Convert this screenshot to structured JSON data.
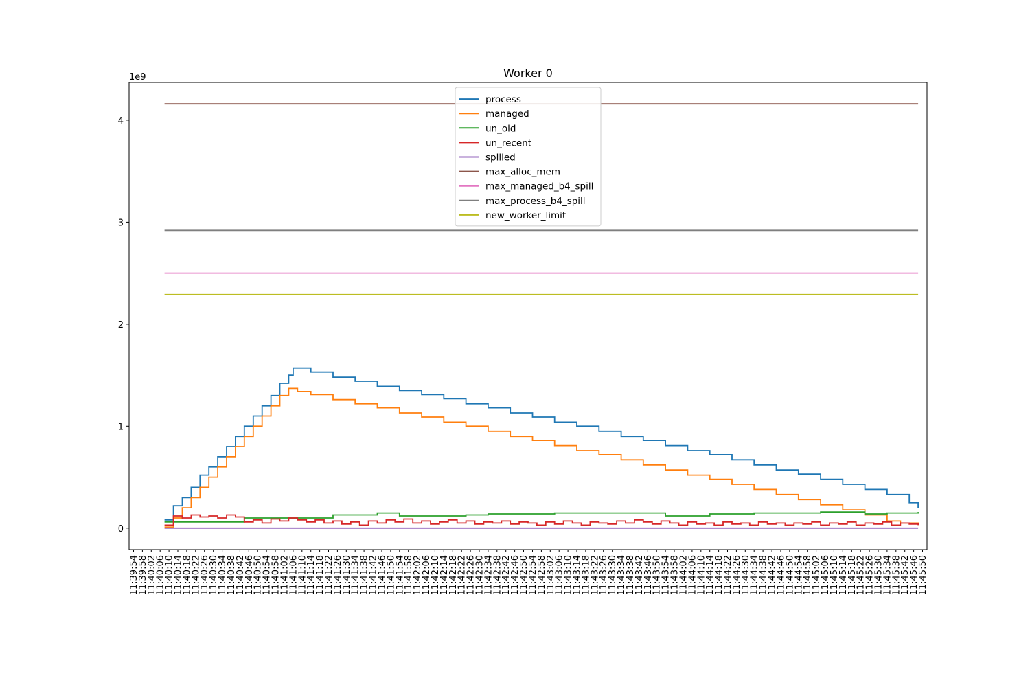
{
  "chart_data": {
    "type": "line",
    "title": "Worker 0",
    "xlabel": "",
    "ylabel": "",
    "y_multiplier_label": "1e9",
    "y_scale": 1000000000,
    "ylim": [
      -0.21,
      4.37
    ],
    "y_ticks": [
      0,
      1,
      2,
      3,
      4
    ],
    "y_tick_labels": [
      "0",
      "1",
      "2",
      "3",
      "4"
    ],
    "x_unit": "seconds since 11:39:54",
    "xlim": [
      -2,
      358
    ],
    "x_ticks_start": 0,
    "x_ticks_step": 4,
    "x_tick_labels": [
      "11:39:54",
      "11:39:58",
      "11:40:02",
      "11:40:06",
      "11:40:10",
      "11:40:14",
      "11:40:18",
      "11:40:22",
      "11:40:26",
      "11:40:30",
      "11:40:34",
      "11:40:38",
      "11:40:42",
      "11:40:46",
      "11:40:50",
      "11:40:54",
      "11:40:58",
      "11:41:02",
      "11:41:06",
      "11:41:10",
      "11:41:14",
      "11:41:18",
      "11:41:22",
      "11:41:26",
      "11:41:30",
      "11:41:34",
      "11:41:38",
      "11:41:42",
      "11:41:46",
      "11:41:50",
      "11:41:54",
      "11:41:58",
      "11:42:02",
      "11:42:06",
      "11:42:10",
      "11:42:14",
      "11:42:18",
      "11:42:22",
      "11:42:26",
      "11:42:30",
      "11:42:34",
      "11:42:38",
      "11:42:42",
      "11:42:46",
      "11:42:50",
      "11:42:54",
      "11:42:58",
      "11:43:02",
      "11:43:06",
      "11:43:10",
      "11:43:14",
      "11:43:18",
      "11:43:22",
      "11:43:26",
      "11:43:30",
      "11:43:34",
      "11:43:38",
      "11:43:42",
      "11:43:46",
      "11:43:50",
      "11:43:54",
      "11:43:58",
      "11:44:02",
      "11:44:06",
      "11:44:10",
      "11:44:14",
      "11:44:18",
      "11:44:22",
      "11:44:26",
      "11:44:30",
      "11:44:34",
      "11:44:38",
      "11:44:42",
      "11:44:46",
      "11:44:50",
      "11:44:54",
      "11:44:58",
      "11:45:02",
      "11:45:06",
      "11:45:10",
      "11:45:14",
      "11:45:18",
      "11:45:22",
      "11:45:26",
      "11:45:30",
      "11:45:34",
      "11:45:38",
      "11:45:42",
      "11:45:46",
      "11:45:50"
    ],
    "grid": false,
    "legend_position": "upper center",
    "series": [
      {
        "name": "process",
        "color": "#1f77b4",
        "x": [
          14,
          18,
          22,
          26,
          30,
          34,
          38,
          42,
          46,
          50,
          54,
          58,
          62,
          66,
          70,
          72,
          80,
          90,
          100,
          110,
          120,
          130,
          140,
          150,
          160,
          170,
          180,
          190,
          200,
          210,
          220,
          230,
          240,
          250,
          260,
          270,
          280,
          290,
          300,
          310,
          320,
          330,
          340,
          350,
          354
        ],
        "y": [
          0.08,
          0.22,
          0.3,
          0.4,
          0.52,
          0.6,
          0.7,
          0.8,
          0.9,
          1.0,
          1.1,
          1.2,
          1.3,
          1.42,
          1.5,
          1.57,
          1.53,
          1.48,
          1.44,
          1.39,
          1.35,
          1.31,
          1.27,
          1.22,
          1.18,
          1.13,
          1.09,
          1.04,
          1.0,
          0.95,
          0.9,
          0.86,
          0.81,
          0.76,
          0.72,
          0.67,
          0.62,
          0.57,
          0.53,
          0.48,
          0.43,
          0.38,
          0.33,
          0.25,
          0.2
        ]
      },
      {
        "name": "managed",
        "color": "#ff7f0e",
        "x": [
          14,
          18,
          22,
          26,
          30,
          34,
          38,
          42,
          46,
          50,
          54,
          58,
          62,
          66,
          70,
          74,
          80,
          90,
          100,
          110,
          120,
          130,
          140,
          150,
          160,
          170,
          180,
          190,
          200,
          210,
          220,
          230,
          240,
          250,
          260,
          270,
          280,
          290,
          300,
          310,
          320,
          330,
          340,
          346,
          354
        ],
        "y": [
          0.01,
          0.1,
          0.2,
          0.3,
          0.4,
          0.5,
          0.6,
          0.7,
          0.8,
          0.9,
          1.0,
          1.1,
          1.2,
          1.3,
          1.37,
          1.34,
          1.31,
          1.26,
          1.22,
          1.18,
          1.13,
          1.09,
          1.04,
          1.0,
          0.95,
          0.9,
          0.86,
          0.81,
          0.76,
          0.72,
          0.67,
          0.62,
          0.57,
          0.52,
          0.48,
          0.43,
          0.38,
          0.33,
          0.28,
          0.23,
          0.18,
          0.13,
          0.07,
          0.05,
          0.04
        ]
      },
      {
        "name": "un_old",
        "color": "#2ca02c",
        "x": [
          14,
          16,
          30,
          50,
          80,
          90,
          110,
          120,
          150,
          160,
          180,
          190,
          240,
          260,
          280,
          310,
          330,
          340,
          354
        ],
        "y": [
          0.06,
          0.06,
          0.06,
          0.1,
          0.1,
          0.13,
          0.15,
          0.12,
          0.13,
          0.14,
          0.14,
          0.15,
          0.12,
          0.14,
          0.15,
          0.16,
          0.14,
          0.15,
          0.16
        ]
      },
      {
        "name": "un_recent",
        "color": "#d62728",
        "x": [
          14,
          18,
          22,
          26,
          30,
          34,
          38,
          42,
          46,
          50,
          54,
          58,
          62,
          66,
          70,
          74,
          78,
          82,
          86,
          90,
          94,
          98,
          102,
          106,
          110,
          114,
          118,
          122,
          126,
          130,
          134,
          138,
          142,
          146,
          150,
          154,
          158,
          162,
          166,
          170,
          174,
          178,
          182,
          186,
          190,
          194,
          198,
          202,
          206,
          210,
          214,
          218,
          222,
          226,
          230,
          234,
          238,
          242,
          246,
          250,
          254,
          258,
          262,
          266,
          270,
          274,
          278,
          282,
          286,
          290,
          294,
          298,
          302,
          306,
          310,
          314,
          318,
          322,
          326,
          330,
          334,
          338,
          342,
          346,
          350,
          354
        ],
        "y": [
          0.03,
          0.12,
          0.1,
          0.13,
          0.11,
          0.12,
          0.1,
          0.13,
          0.11,
          0.06,
          0.08,
          0.05,
          0.09,
          0.07,
          0.1,
          0.08,
          0.06,
          0.08,
          0.05,
          0.07,
          0.04,
          0.06,
          0.03,
          0.07,
          0.05,
          0.08,
          0.06,
          0.09,
          0.05,
          0.07,
          0.04,
          0.06,
          0.08,
          0.05,
          0.07,
          0.04,
          0.06,
          0.05,
          0.07,
          0.04,
          0.06,
          0.05,
          0.03,
          0.06,
          0.04,
          0.07,
          0.05,
          0.03,
          0.06,
          0.05,
          0.04,
          0.07,
          0.05,
          0.08,
          0.06,
          0.04,
          0.07,
          0.05,
          0.03,
          0.06,
          0.04,
          0.05,
          0.03,
          0.06,
          0.04,
          0.05,
          0.03,
          0.06,
          0.04,
          0.05,
          0.03,
          0.05,
          0.04,
          0.06,
          0.03,
          0.05,
          0.04,
          0.06,
          0.03,
          0.05,
          0.04,
          0.06,
          0.03,
          0.05,
          0.04,
          0.03
        ]
      },
      {
        "name": "spilled",
        "color": "#9467bd",
        "x": [
          14,
          354
        ],
        "y": [
          0.0,
          0.0
        ]
      },
      {
        "name": "max_alloc_mem",
        "color": "#8c564b",
        "x": [
          14,
          354
        ],
        "y": [
          4.16,
          4.16
        ]
      },
      {
        "name": "max_managed_b4_spill",
        "color": "#e377c2",
        "x": [
          14,
          354
        ],
        "y": [
          2.5,
          2.5
        ]
      },
      {
        "name": "max_process_b4_spill",
        "color": "#7f7f7f",
        "x": [
          14,
          354
        ],
        "y": [
          2.92,
          2.92
        ]
      },
      {
        "name": "new_worker_limit",
        "color": "#bcbd22",
        "x": [
          14,
          354
        ],
        "y": [
          2.29,
          2.29
        ]
      }
    ]
  }
}
